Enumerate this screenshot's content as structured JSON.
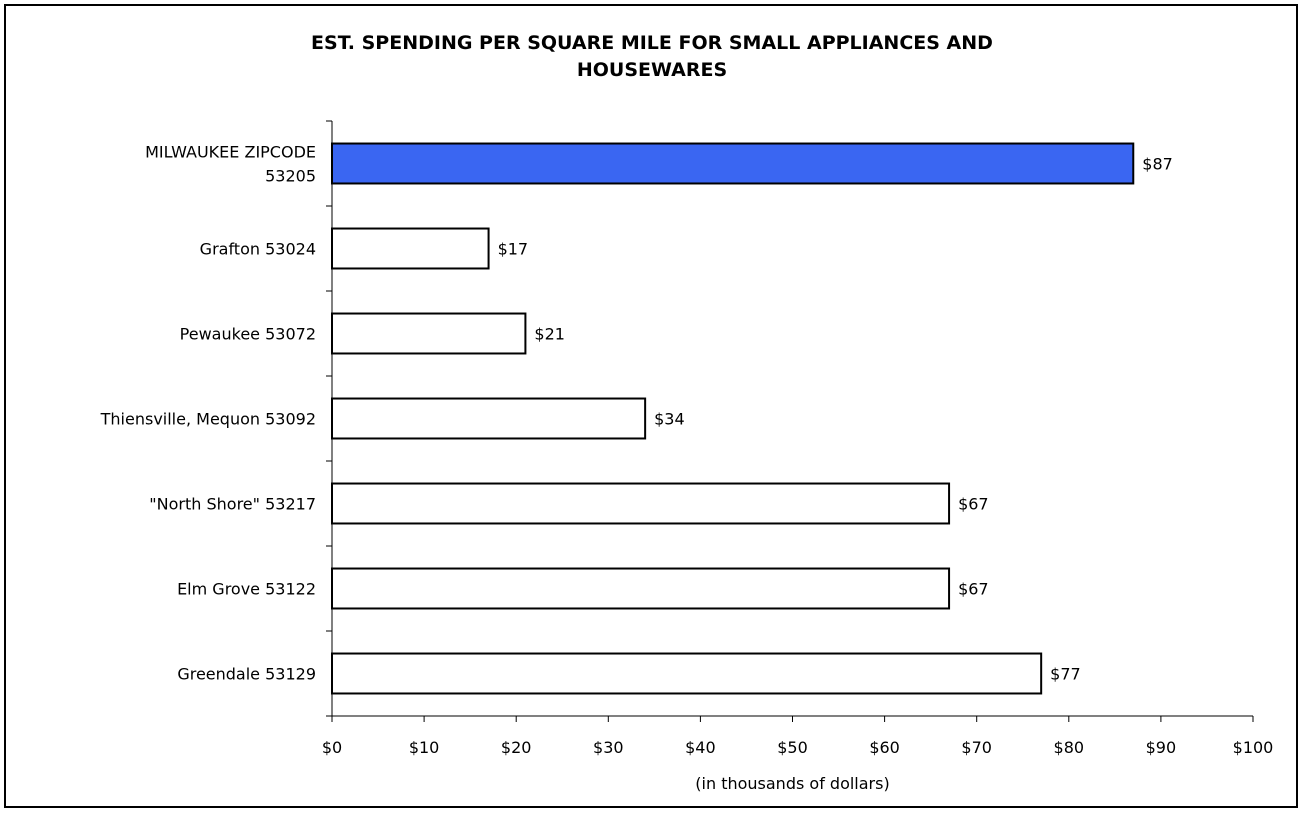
{
  "chart_data": {
    "type": "bar",
    "orientation": "horizontal",
    "title_line1": "EST. SPENDING PER SQUARE MILE FOR SMALL APPLIANCES AND",
    "title_line2": "HOUSEWARES",
    "xlabel": "(in thousands of dollars)",
    "categories": [
      [
        "MILWAUKEE ZIPCODE",
        "53205"
      ],
      [
        "Grafton 53024"
      ],
      [
        "Pewaukee 53072"
      ],
      [
        "Thiensville, Mequon 53092"
      ],
      [
        "\"North Shore\" 53217"
      ],
      [
        "Elm Grove 53122"
      ],
      [
        "Greendale 53129"
      ]
    ],
    "values": [
      87,
      17,
      21,
      34,
      67,
      67,
      77
    ],
    "value_labels": [
      "$87",
      "$17",
      "$21",
      "$34",
      "$67",
      "$67",
      "$77"
    ],
    "highlight_index": 0,
    "xlim": [
      0,
      100
    ],
    "xticks": [
      0,
      10,
      20,
      30,
      40,
      50,
      60,
      70,
      80,
      90,
      100
    ],
    "xtick_labels": [
      "$0",
      "$10",
      "$20",
      "$30",
      "$40",
      "$50",
      "$60",
      "$70",
      "$80",
      "$90",
      "$100"
    ],
    "grid": false,
    "colors": {
      "highlight": "#3a66f2",
      "bar": "#ffffff",
      "stroke": "#000000"
    }
  }
}
